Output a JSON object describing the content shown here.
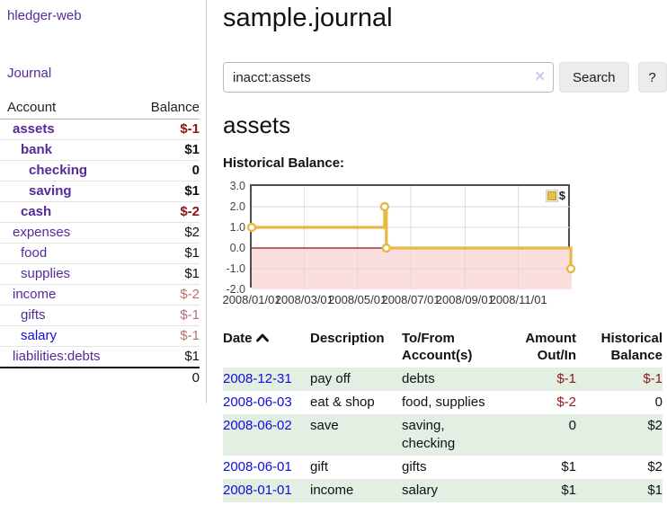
{
  "sidebar": {
    "app_title": "hledger-web",
    "journal_label": "Journal",
    "accounts_table": {
      "headers": {
        "account": "Account",
        "balance": "Balance"
      },
      "rows": [
        {
          "name": "assets",
          "balance": "$-1",
          "depth": 1,
          "bold": true,
          "negative": true,
          "unvisited": false
        },
        {
          "name": "bank",
          "balance": "$1",
          "depth": 2,
          "bold": true,
          "negative": false,
          "unvisited": false
        },
        {
          "name": "checking",
          "balance": "0",
          "depth": 3,
          "bold": true,
          "negative": false,
          "unvisited": false
        },
        {
          "name": "saving",
          "balance": "$1",
          "depth": 3,
          "bold": true,
          "negative": false,
          "unvisited": false
        },
        {
          "name": "cash",
          "balance": "$-2",
          "depth": 2,
          "bold": true,
          "negative": true,
          "unvisited": false
        },
        {
          "name": "expenses",
          "balance": "$2",
          "depth": 1,
          "bold": false,
          "negative": false,
          "unvisited": false
        },
        {
          "name": "food",
          "balance": "$1",
          "depth": 2,
          "bold": false,
          "negative": false,
          "unvisited": false
        },
        {
          "name": "supplies",
          "balance": "$1",
          "depth": 2,
          "bold": false,
          "negative": false,
          "unvisited": false
        },
        {
          "name": "income",
          "balance": "$-2",
          "depth": 1,
          "bold": false,
          "negative": true,
          "unvisited": false
        },
        {
          "name": "gifts",
          "balance": "$-1",
          "depth": 2,
          "bold": false,
          "negative": true,
          "unvisited": false
        },
        {
          "name": "salary",
          "balance": "$-1",
          "depth": 2,
          "bold": false,
          "negative": true,
          "unvisited": true
        },
        {
          "name": "liabilities:debts",
          "balance": "$1",
          "depth": 1,
          "bold": false,
          "negative": false,
          "unvisited": false
        }
      ],
      "total": "0"
    }
  },
  "main": {
    "title": "sample.journal",
    "search": {
      "value": "inacct:assets",
      "clear_icon": "✕",
      "button_label": "Search",
      "help_label": "?"
    },
    "account_heading": "assets",
    "chart_heading": "Historical Balance:",
    "register_table": {
      "headers": {
        "date": "Date",
        "description": "Description",
        "accounts": "To/From Account(s)",
        "amount": "Amount Out/In",
        "balance": "Historical Balance"
      },
      "rows": [
        {
          "date": "2008-12-31",
          "description": "pay off",
          "accounts": "debts",
          "amount": "$-1",
          "amount_negative": true,
          "balance": "$-1",
          "balance_negative": true
        },
        {
          "date": "2008-06-03",
          "description": "eat & shop",
          "accounts": "food, supplies",
          "amount": "$-2",
          "amount_negative": true,
          "balance": "0",
          "balance_negative": false
        },
        {
          "date": "2008-06-02",
          "description": "save",
          "accounts": "saving, checking",
          "amount": "0",
          "amount_negative": false,
          "balance": "$2",
          "balance_negative": false
        },
        {
          "date": "2008-06-01",
          "description": "gift",
          "accounts": "gifts",
          "amount": "$1",
          "amount_negative": false,
          "balance": "$2",
          "balance_negative": false
        },
        {
          "date": "2008-01-01",
          "description": "income",
          "accounts": "salary",
          "amount": "$1",
          "amount_negative": false,
          "balance": "$1",
          "balance_negative": false
        }
      ]
    }
  },
  "chart_data": {
    "type": "line",
    "step": true,
    "title": "Historical Balance:",
    "series": [
      {
        "name": "$",
        "points": [
          {
            "date": "2008-01-01",
            "value": 1
          },
          {
            "date": "2008-06-01",
            "value": 2
          },
          {
            "date": "2008-06-03",
            "value": 0
          },
          {
            "date": "2008-12-31",
            "value": -1
          }
        ]
      }
    ],
    "x_domain": [
      "2008-01-01",
      "2009-01-01"
    ],
    "ylim": [
      -2,
      3
    ],
    "x_tick_labels": [
      "2008/01/01",
      "2008/03/01",
      "2008/05/01",
      "2008/07/01",
      "2008/09/01",
      "2008/11/01"
    ],
    "y_tick_labels": [
      "3.0",
      "2.0",
      "1.0",
      "0.0",
      "-1.0",
      "-2.0"
    ],
    "legend": {
      "label": "$",
      "position": "top-right",
      "swatch_color": "#e9c13e"
    },
    "grid": true,
    "colors": {
      "line": "#e6b945",
      "negative_region": "#fbdede",
      "zero_line": "#8b1010",
      "grid": "#dadada"
    }
  }
}
